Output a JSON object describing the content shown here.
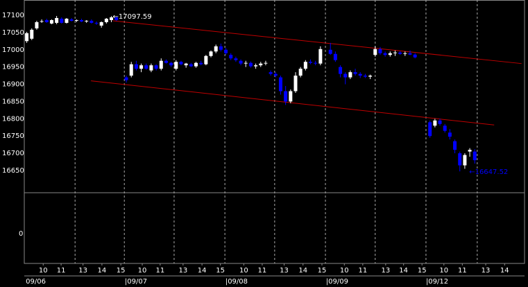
{
  "chart_data": {
    "type": "candlestick",
    "up_color": "#ffffff",
    "down_color": "#0000ff",
    "trend_color": "#c00000",
    "x": [
      0,
      1,
      2,
      3,
      4,
      5,
      6,
      7,
      8,
      9,
      10,
      11,
      12,
      13,
      14,
      15,
      16,
      17,
      18,
      20,
      21,
      22,
      23,
      24,
      25,
      26,
      27,
      28,
      29,
      30,
      31,
      32,
      33,
      34,
      35,
      36,
      37,
      38,
      39,
      40,
      41,
      42,
      43,
      44,
      45,
      46,
      47,
      48,
      49,
      50,
      51,
      52,
      53,
      54,
      55,
      56,
      57,
      58,
      59,
      61,
      62,
      63,
      64,
      65,
      66,
      67,
      68,
      69,
      70,
      71,
      72,
      73,
      74,
      75,
      76,
      77,
      78,
      81,
      82,
      83,
      84,
      85,
      86,
      87,
      88,
      89,
      90
    ],
    "open": [
      17025,
      17032,
      17062,
      17082,
      17086,
      17076,
      17078,
      17090,
      17078,
      17088,
      17084,
      17086,
      17082,
      17084,
      17078,
      17070,
      17080,
      17086,
      17094,
      16920,
      16925,
      16958,
      16945,
      16955,
      16940,
      16955,
      16945,
      16968,
      16962,
      16945,
      16965,
      16955,
      16958,
      16952,
      16962,
      16958,
      16982,
      16995,
      17010,
      17000,
      16985,
      16975,
      16968,
      16960,
      16962,
      16952,
      16955,
      16960,
      16935,
      16930,
      16920,
      16880,
      16850,
      16880,
      16925,
      16945,
      16965,
      16962,
      16960,
      17000,
      16988,
      16950,
      16930,
      16920,
      16935,
      16930,
      16925,
      16922,
      16985,
      17002,
      16990,
      16985,
      16990,
      16992,
      16988,
      16990,
      16986,
      16790,
      16780,
      16795,
      16780,
      16760,
      16735,
      16700,
      16665,
      16705,
      16705
    ],
    "high": [
      17052,
      17062,
      17084,
      17088,
      17090,
      17088,
      17098,
      17094,
      17092,
      17092,
      17088,
      17090,
      17086,
      17088,
      17082,
      17082,
      17092,
      17097.59,
      17096,
      16925,
      16965,
      16968,
      16960,
      16960,
      16960,
      16958,
      16975,
      16972,
      16965,
      16970,
      16968,
      16962,
      16962,
      16965,
      16968,
      16985,
      16998,
      17015,
      17018,
      17005,
      16990,
      16980,
      16972,
      16968,
      16966,
      16960,
      16965,
      16968,
      16940,
      16935,
      16925,
      16895,
      16885,
      16935,
      16950,
      16970,
      16972,
      16968,
      17010,
      17020,
      16995,
      16955,
      16935,
      16940,
      16945,
      16935,
      16930,
      16928,
      17010,
      17008,
      16995,
      16995,
      16998,
      16996,
      16995,
      16998,
      16990,
      16795,
      16800,
      16800,
      16785,
      16770,
      16740,
      16705,
      16700,
      16715,
      16712
    ],
    "low": [
      17020,
      17028,
      17058,
      17078,
      17078,
      17074,
      17074,
      17076,
      17076,
      17082,
      17080,
      17080,
      17078,
      17076,
      17072,
      17064,
      17076,
      17080,
      17084,
      16905,
      16920,
      16940,
      16935,
      16942,
      16935,
      16940,
      16940,
      16960,
      16950,
      16940,
      16955,
      16948,
      16950,
      16948,
      16955,
      16955,
      16978,
      16990,
      16995,
      16985,
      16970,
      16965,
      16955,
      16950,
      16948,
      16945,
      16950,
      16955,
      16925,
      16920,
      16870,
      16840,
      16845,
      16875,
      16920,
      16940,
      16958,
      16955,
      16955,
      16985,
      16965,
      16920,
      16900,
      16915,
      16925,
      16918,
      16918,
      16915,
      16980,
      16985,
      16980,
      16980,
      16982,
      16985,
      16982,
      16984,
      16975,
      16745,
      16775,
      16780,
      16760,
      16740,
      16700,
      16647.52,
      16655,
      16690,
      16670
    ],
    "close": [
      17048,
      17058,
      17080,
      17083,
      17080,
      17086,
      17092,
      17078,
      17090,
      17084,
      17086,
      17082,
      17084,
      17078,
      17076,
      17080,
      17090,
      17094,
      17086,
      16912,
      16958,
      16945,
      16955,
      16945,
      16955,
      16945,
      16968,
      16962,
      16955,
      16965,
      16958,
      16960,
      16952,
      16962,
      16958,
      16982,
      16995,
      17010,
      17000,
      16990,
      16975,
      16970,
      16960,
      16962,
      16952,
      16955,
      16960,
      16962,
      16930,
      16925,
      16880,
      16850,
      16880,
      16925,
      16945,
      16965,
      16962,
      16960,
      17002,
      16988,
      16970,
      16930,
      16920,
      16935,
      16930,
      16925,
      16922,
      16925,
      17002,
      16990,
      16985,
      16990,
      16992,
      16988,
      16990,
      16986,
      16978,
      16750,
      16795,
      16785,
      16765,
      16748,
      16710,
      16665,
      16695,
      16710,
      16680
    ],
    "xlim": [
      -0.5,
      100
    ],
    "ylim": [
      16585.7,
      17144.2
    ],
    "yticks": [
      16650,
      16700,
      16750,
      16800,
      16850,
      16900,
      16950,
      17000,
      17050,
      17100
    ],
    "xticks": [
      {
        "value": 3.3,
        "label": "10"
      },
      {
        "value": 6.9,
        "label": "11"
      },
      {
        "value": 11.3,
        "label": "13"
      },
      {
        "value": 15.1,
        "label": "14"
      },
      {
        "value": 18.9,
        "label": "15"
      },
      {
        "value": 23.2,
        "label": "10"
      },
      {
        "value": 26.8,
        "label": "11"
      },
      {
        "value": 31.4,
        "label": "13"
      },
      {
        "value": 35.2,
        "label": "14"
      },
      {
        "value": 38.9,
        "label": "15"
      },
      {
        "value": 43.6,
        "label": "10"
      },
      {
        "value": 47.3,
        "label": "11"
      },
      {
        "value": 51.7,
        "label": "13"
      },
      {
        "value": 55.5,
        "label": "14"
      },
      {
        "value": 59.3,
        "label": "15"
      },
      {
        "value": 63.8,
        "label": "10"
      },
      {
        "value": 67.5,
        "label": "11"
      },
      {
        "value": 72.1,
        "label": "13"
      },
      {
        "value": 75.7,
        "label": "14"
      },
      {
        "value": 79.4,
        "label": "15"
      },
      {
        "value": 83.8,
        "label": "10"
      },
      {
        "value": 87.5,
        "label": "11"
      },
      {
        "value": 92.2,
        "label": "13"
      },
      {
        "value": 96.0,
        "label": "14"
      }
    ],
    "date_ticks": [
      {
        "value": -0.2,
        "label": "09/06"
      },
      {
        "value": 19.7,
        "label": "|09/07"
      },
      {
        "value": 39.9,
        "label": "|09/08"
      },
      {
        "value": 60.1,
        "label": "|09/09"
      },
      {
        "value": 80.2,
        "label": "|09/12"
      }
    ],
    "xgrid": [
      9.7,
      19.6,
      29.6,
      39.8,
      49.8,
      60.0,
      70.0,
      80.2,
      90.5
    ],
    "trend_lines": [
      {
        "x": [
          17.3,
          99.4
        ],
        "y": [
          17084,
          16960
        ]
      },
      {
        "x": [
          12.9,
          93.9
        ],
        "y": [
          16910,
          16782
        ]
      }
    ],
    "annotations": [
      {
        "text": "←17097.59",
        "x": 17,
        "y": 17097.59,
        "color": "#ffffff"
      },
      {
        "text": "←16647.52",
        "x": 88.6,
        "y": 16647.52,
        "color": "#0000ff"
      }
    ],
    "lower_panel": {
      "ylim": [
        -0.73,
        1
      ],
      "yticks": [
        0
      ]
    }
  }
}
